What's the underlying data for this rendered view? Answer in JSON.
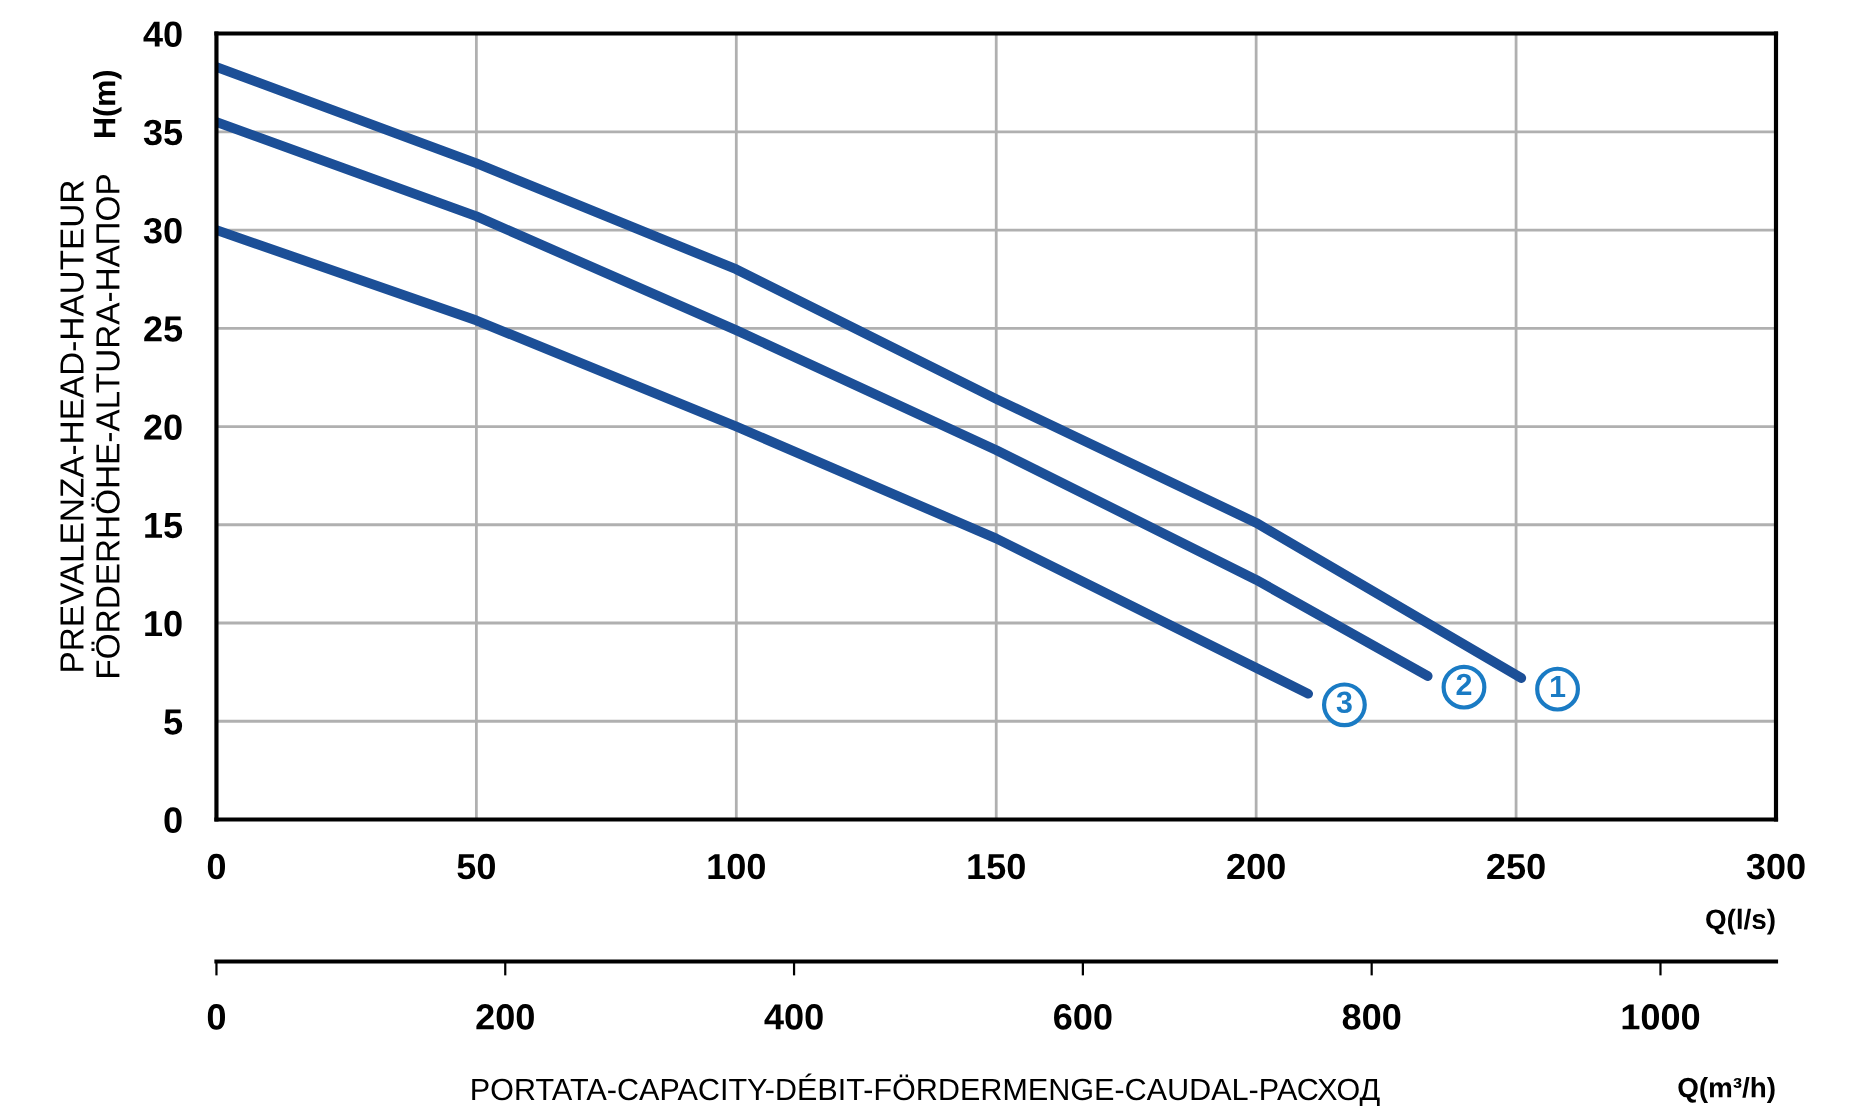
{
  "chart_data": {
    "type": "line",
    "xlabel": "Q(l/s)",
    "ylabel": "PREVALENZA-HEAD-HAUTEUR\nFÖRDERHÖHE-ALTURA-НАПОР",
    "x2label": "Q(m³/h)",
    "annotations": [
      "PORTATA-CAPACITY-DÉBIT-FÖRDERMENGE-CAUDAL-РАСХОД",
      "H(m)"
    ],
    "xlim": [
      0,
      300
    ],
    "xticks": [
      0,
      50,
      100,
      150,
      200,
      250,
      300
    ],
    "ylim": [
      0,
      40
    ],
    "yticks": [
      0,
      5,
      10,
      15,
      20,
      25,
      30,
      35,
      40
    ],
    "x2lim": [
      0,
      1080
    ],
    "x2ticks": [
      0,
      200,
      400,
      600,
      800,
      1000
    ],
    "grid": true,
    "marker": "none",
    "line_style": "solid",
    "series": [
      {
        "name": "1",
        "color": "#1c4f97",
        "x": [
          0,
          50,
          100,
          150,
          200,
          251
        ],
        "values": [
          38.3,
          33.4,
          28,
          21.4,
          15.1,
          7.2
        ]
      },
      {
        "name": "2",
        "color": "#1c4f97",
        "x": [
          0,
          50,
          100,
          150,
          200,
          233
        ],
        "values": [
          35.5,
          30.7,
          24.9,
          18.8,
          12.2,
          7.3
        ]
      },
      {
        "name": "3",
        "color": "#1c4f97",
        "x": [
          0,
          50,
          100,
          150,
          210
        ],
        "values": [
          30,
          25.4,
          20,
          14.3,
          6.4
        ]
      }
    ]
  }
}
